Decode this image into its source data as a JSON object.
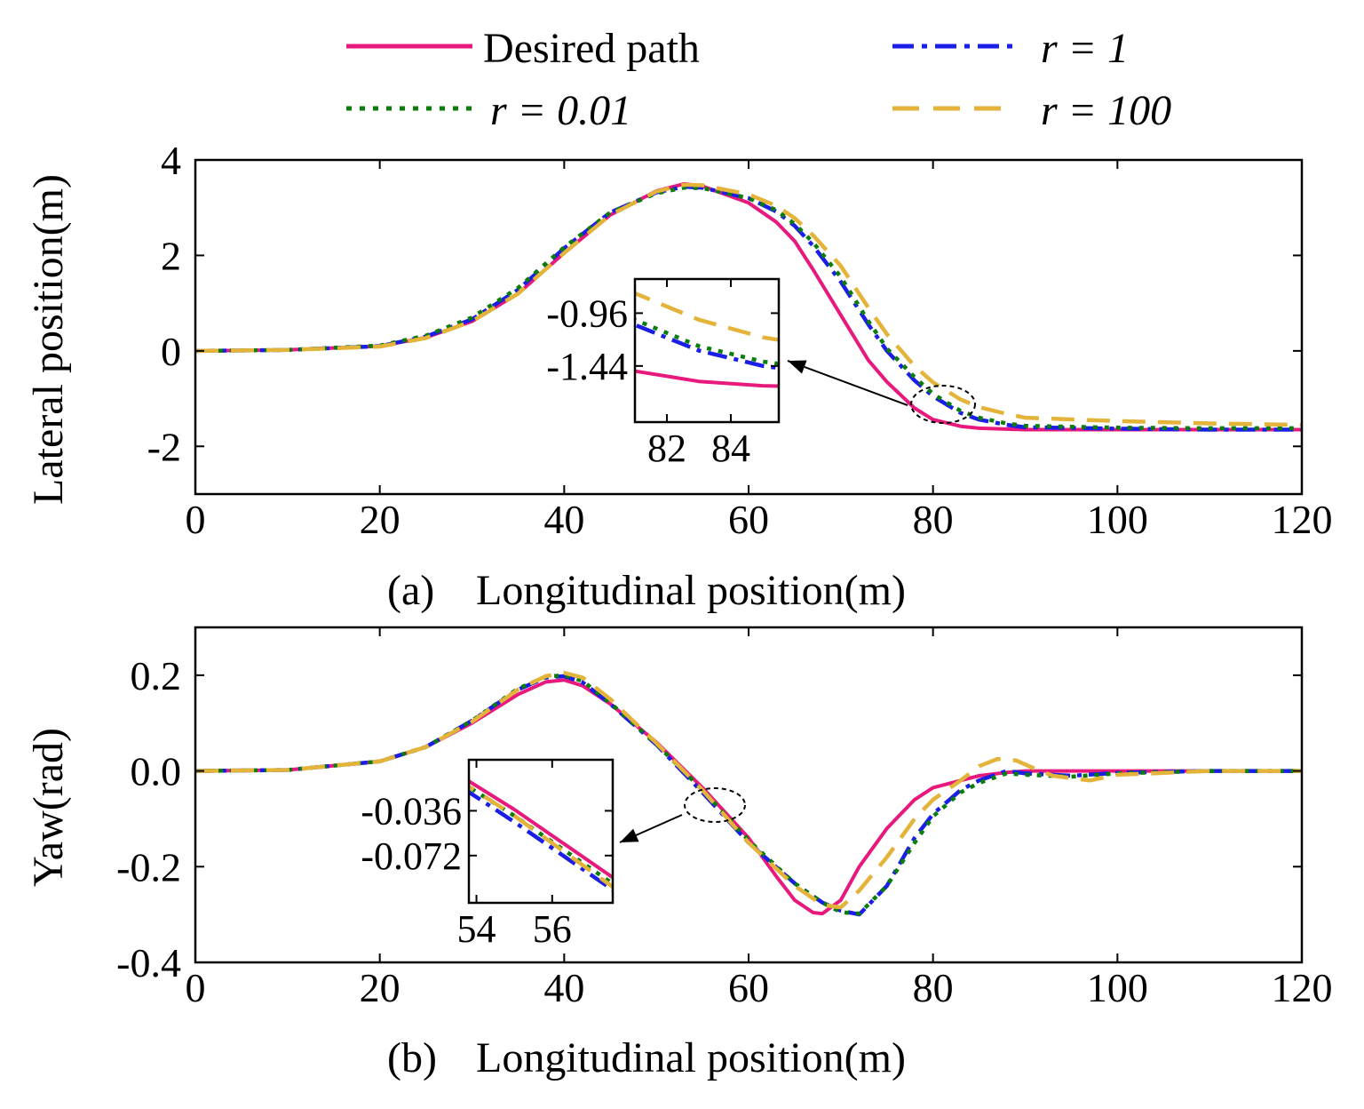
{
  "legend": {
    "desired": "Desired path",
    "r1": "r = 1",
    "r001": "r = 0.01",
    "r100": "r = 100"
  },
  "colors": {
    "desired": "#e8197d",
    "r1": "#1a1ee6",
    "r001": "#0a7d0a",
    "r100": "#e3b33a"
  },
  "chart_data": [
    {
      "type": "line",
      "panel_label": "(a)",
      "xlabel": "Longitudinal position(m)",
      "ylabel": "Lateral position(m)",
      "xlim": [
        0,
        120
      ],
      "ylim": [
        -3,
        4
      ],
      "xticks": [
        0,
        20,
        40,
        60,
        80,
        100,
        120
      ],
      "yticks": [
        -2,
        0,
        2,
        4
      ],
      "series": [
        {
          "name": "Desired path",
          "key": "desired",
          "x": [
            0,
            10,
            20,
            25,
            30,
            35,
            40,
            45,
            50,
            53,
            55,
            60,
            63,
            65,
            67,
            70,
            73,
            75,
            78,
            80,
            83,
            85,
            88,
            90,
            100,
            110,
            120
          ],
          "y": [
            0,
            0.02,
            0.1,
            0.28,
            0.62,
            1.2,
            2.05,
            2.85,
            3.35,
            3.5,
            3.45,
            3.1,
            2.7,
            2.3,
            1.7,
            0.75,
            -0.2,
            -0.65,
            -1.2,
            -1.44,
            -1.58,
            -1.62,
            -1.64,
            -1.65,
            -1.65,
            -1.65,
            -1.65
          ]
        },
        {
          "name": "r = 1",
          "key": "r1",
          "x": [
            0,
            10,
            20,
            25,
            30,
            35,
            40,
            45,
            50,
            53,
            55,
            60,
            63,
            65,
            67,
            70,
            73,
            75,
            78,
            80,
            83,
            85,
            88,
            90,
            100,
            110,
            120
          ],
          "y": [
            0,
            0.02,
            0.1,
            0.3,
            0.66,
            1.28,
            2.15,
            2.9,
            3.32,
            3.44,
            3.42,
            3.2,
            2.92,
            2.62,
            2.2,
            1.45,
            0.55,
            0.0,
            -0.62,
            -0.95,
            -1.3,
            -1.44,
            -1.55,
            -1.6,
            -1.63,
            -1.65,
            -1.65
          ]
        },
        {
          "name": "r = 0.01",
          "key": "r001",
          "x": [
            0,
            10,
            20,
            25,
            30,
            35,
            40,
            45,
            50,
            53,
            55,
            60,
            63,
            65,
            67,
            70,
            73,
            75,
            78,
            80,
            83,
            85,
            88,
            90,
            100,
            110,
            120
          ],
          "y": [
            0,
            0.02,
            0.11,
            0.32,
            0.7,
            1.32,
            2.17,
            2.9,
            3.3,
            3.42,
            3.41,
            3.2,
            2.95,
            2.66,
            2.27,
            1.55,
            0.62,
            0.05,
            -0.55,
            -0.9,
            -1.26,
            -1.4,
            -1.52,
            -1.57,
            -1.61,
            -1.62,
            -1.62
          ]
        },
        {
          "name": "r = 100",
          "key": "r100",
          "x": [
            0,
            10,
            20,
            25,
            30,
            35,
            40,
            45,
            50,
            53,
            55,
            60,
            63,
            65,
            67,
            70,
            73,
            75,
            78,
            80,
            83,
            85,
            88,
            90,
            100,
            110,
            120
          ],
          "y": [
            0,
            0.02,
            0.09,
            0.27,
            0.62,
            1.2,
            2.05,
            2.85,
            3.34,
            3.48,
            3.47,
            3.28,
            3.04,
            2.78,
            2.42,
            1.78,
            0.9,
            0.35,
            -0.32,
            -0.66,
            -1.02,
            -1.18,
            -1.32,
            -1.4,
            -1.47,
            -1.52,
            -1.55
          ]
        }
      ],
      "inset": {
        "xlim": [
          81,
          85.5
        ],
        "ylim": [
          -1.95,
          -0.65
        ],
        "xticks": [
          82,
          84
        ],
        "yticks": [
          -0.96,
          -1.44
        ],
        "ytick_labels": [
          "-0.96",
          "-1.44"
        ]
      }
    },
    {
      "type": "line",
      "panel_label": "(b)",
      "xlabel": "Longitudinal position(m)",
      "ylabel": "Yaw(rad)",
      "xlim": [
        0,
        120
      ],
      "ylim": [
        -0.4,
        0.3
      ],
      "xticks": [
        0,
        20,
        40,
        60,
        80,
        100,
        120
      ],
      "yticks": [
        -0.4,
        -0.2,
        0.0,
        0.2
      ],
      "ytick_labels": [
        "-0.4",
        "-0.2",
        "0.0",
        "0.2"
      ],
      "series": [
        {
          "name": "Desired path",
          "key": "desired",
          "x": [
            0,
            10,
            20,
            25,
            30,
            35,
            38,
            40,
            42,
            45,
            50,
            55,
            60,
            63,
            65,
            67,
            68,
            70,
            72,
            75,
            78,
            80,
            83,
            85,
            88,
            90,
            100,
            110,
            120
          ],
          "y": [
            0,
            0.002,
            0.02,
            0.05,
            0.1,
            0.16,
            0.186,
            0.19,
            0.178,
            0.14,
            0.06,
            -0.035,
            -0.14,
            -0.22,
            -0.27,
            -0.296,
            -0.298,
            -0.27,
            -0.2,
            -0.12,
            -0.06,
            -0.035,
            -0.02,
            -0.01,
            -0.003,
            0,
            0,
            0,
            0
          ]
        },
        {
          "name": "r = 1",
          "key": "r1",
          "x": [
            0,
            10,
            20,
            25,
            30,
            35,
            38,
            40,
            42,
            45,
            50,
            55,
            60,
            65,
            68,
            70,
            72,
            75,
            78,
            80,
            83,
            85,
            88,
            90,
            95,
            100,
            110,
            120
          ],
          "y": [
            0,
            0.002,
            0.02,
            0.05,
            0.105,
            0.17,
            0.195,
            0.198,
            0.185,
            0.14,
            0.055,
            -0.045,
            -0.15,
            -0.235,
            -0.275,
            -0.292,
            -0.3,
            -0.24,
            -0.14,
            -0.09,
            -0.04,
            -0.02,
            0.0,
            -0.005,
            -0.01,
            -0.004,
            0,
            0
          ]
        },
        {
          "name": "r = 0.01",
          "key": "r001",
          "x": [
            0,
            10,
            20,
            25,
            30,
            35,
            38,
            40,
            42,
            45,
            50,
            55,
            60,
            65,
            68,
            70,
            72,
            75,
            78,
            80,
            83,
            85,
            88,
            90,
            95,
            100,
            110,
            120
          ],
          "y": [
            0,
            0.002,
            0.02,
            0.05,
            0.105,
            0.172,
            0.197,
            0.2,
            0.188,
            0.142,
            0.056,
            -0.04,
            -0.145,
            -0.235,
            -0.275,
            -0.295,
            -0.298,
            -0.24,
            -0.15,
            -0.095,
            -0.045,
            -0.025,
            -0.005,
            -0.008,
            -0.012,
            -0.005,
            0,
            0
          ]
        },
        {
          "name": "r = 100",
          "key": "r100",
          "x": [
            0,
            10,
            20,
            25,
            30,
            35,
            38,
            40,
            42,
            45,
            50,
            55,
            60,
            65,
            68,
            70,
            72,
            75,
            78,
            80,
            83,
            85,
            87,
            89,
            91,
            93,
            97,
            100,
            110,
            120
          ],
          "y": [
            0,
            0.002,
            0.02,
            0.05,
            0.103,
            0.17,
            0.198,
            0.205,
            0.195,
            0.15,
            0.058,
            -0.04,
            -0.15,
            -0.24,
            -0.28,
            -0.285,
            -0.25,
            -0.18,
            -0.1,
            -0.06,
            -0.02,
            0.01,
            0.025,
            0.022,
            0.005,
            -0.01,
            -0.02,
            -0.008,
            0,
            0
          ]
        }
      ],
      "inset": {
        "xlim": [
          53.8,
          57.6
        ],
        "ylim": [
          -0.11,
          0.005
        ],
        "xticks": [
          54,
          56
        ],
        "yticks": [
          -0.036,
          -0.072
        ],
        "ytick_labels": [
          "-0.036",
          "-0.072"
        ]
      }
    }
  ]
}
